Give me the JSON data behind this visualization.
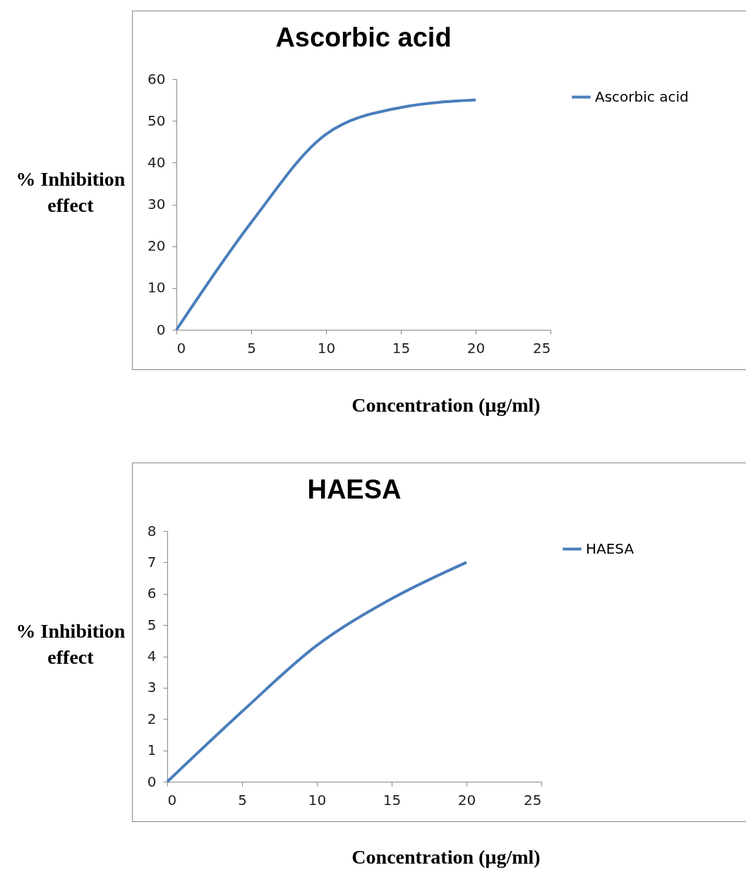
{
  "chart_data": [
    {
      "type": "line",
      "title": "Ascorbic acid",
      "xlabel": "Concentration (µg/ml)",
      "ylabel": "% Inhibition effect",
      "x": [
        0,
        5,
        10,
        15,
        20
      ],
      "series": [
        {
          "name": "Ascorbic acid",
          "color": "#4a7ebb",
          "values": [
            0,
            25.7,
            46.8,
            53.2,
            55
          ]
        }
      ],
      "xlim": [
        0,
        25
      ],
      "xticks": [
        0,
        5,
        10,
        15,
        20,
        25
      ],
      "ylim": [
        0,
        60
      ],
      "yticks": [
        0,
        10,
        20,
        30,
        40,
        50,
        60
      ],
      "grid": false,
      "legend": "right",
      "marker": "none",
      "line_style": "solid"
    },
    {
      "type": "line",
      "title": "HAESA",
      "xlabel": "Concentration (µg/ml)",
      "ylabel": "% Inhibition effect",
      "x": [
        0,
        5,
        10,
        15,
        20
      ],
      "series": [
        {
          "name": "HAESA",
          "color": "#4a7ebb",
          "values": [
            0,
            2.24,
            4.35,
            5.84,
            7
          ]
        }
      ],
      "xlim": [
        0,
        25
      ],
      "xticks": [
        0,
        5,
        10,
        15,
        20,
        25
      ],
      "ylim": [
        0,
        8
      ],
      "yticks": [
        0,
        1,
        2,
        3,
        4,
        5,
        6,
        7,
        8
      ],
      "grid": false,
      "legend": "right",
      "marker": "none",
      "line_style": "solid"
    }
  ]
}
